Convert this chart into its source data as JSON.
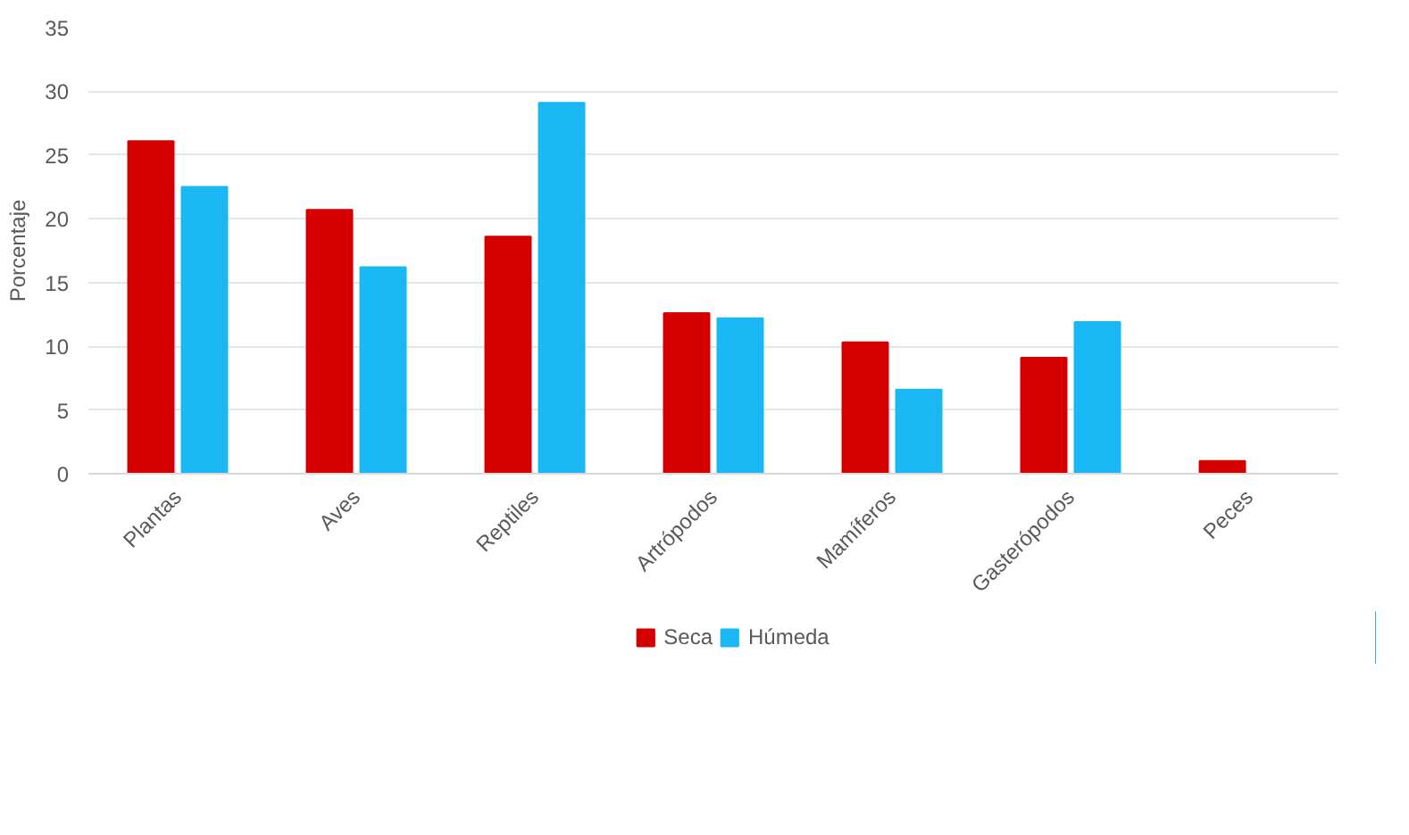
{
  "chart_data": {
    "type": "bar",
    "ylabel": "Porcentaje",
    "categories": [
      "Plantas",
      "Aves",
      "Reptiles",
      "Artrópodos",
      "Mamíferos",
      "Gasterópodos",
      "Peces"
    ],
    "series": [
      {
        "name": "Seca",
        "color": "#d40000",
        "values": [
          26.1,
          20.7,
          18.6,
          12.6,
          10.3,
          9.1,
          1.0
        ]
      },
      {
        "name": "Húmeda",
        "color": "#19b8f5",
        "values": [
          22.5,
          16.2,
          29.1,
          12.2,
          6.6,
          11.9,
          null
        ]
      }
    ],
    "ylim": [
      0,
      35
    ],
    "yticks": [
      0,
      5,
      10,
      15,
      20,
      25,
      30,
      35
    ],
    "grid": "y",
    "legend": "bottom"
  }
}
